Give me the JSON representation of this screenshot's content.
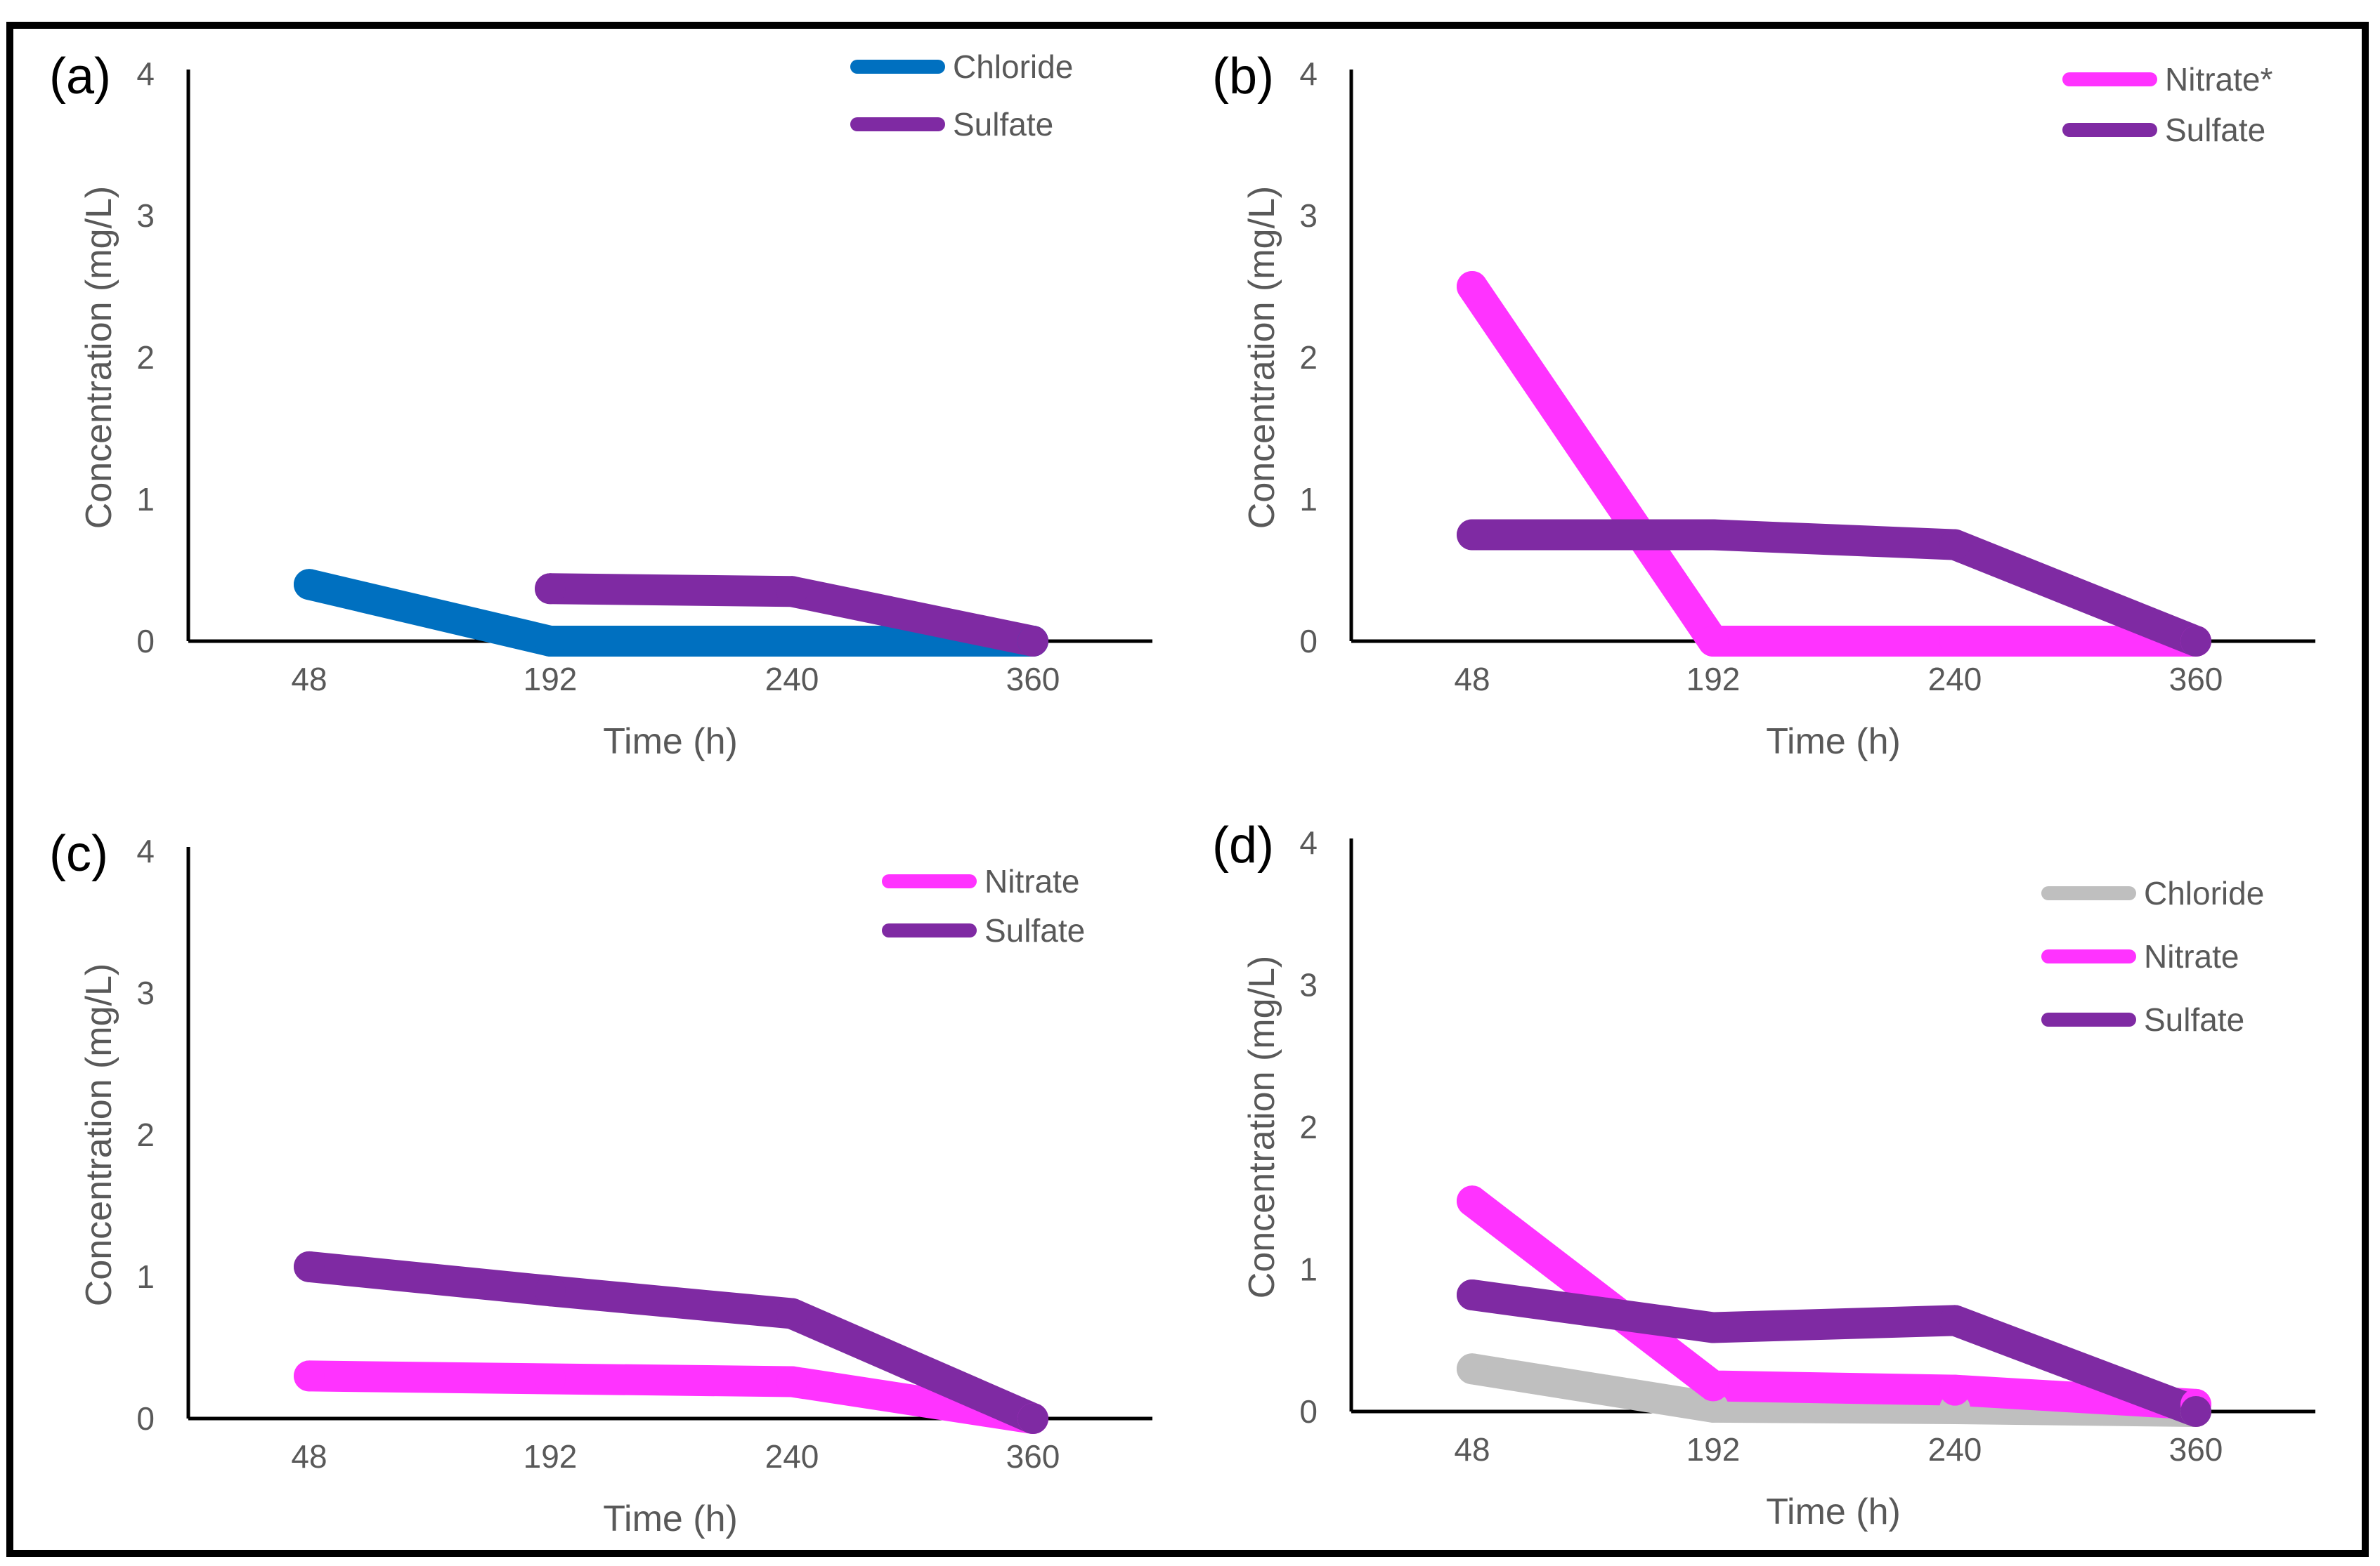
{
  "chart_data": [
    {
      "type": "line",
      "panel_label": "(a)",
      "title": "",
      "xlabel": "Time (h)",
      "ylabel": "Concentration (mg/L)",
      "categories": [
        "48",
        "192",
        "240",
        "360"
      ],
      "yticks": [
        "0",
        "1",
        "2",
        "3",
        "4"
      ],
      "ylim": [
        0,
        4
      ],
      "legend_position": "top-right",
      "series": [
        {
          "name": "Chloride",
          "color": "#0070C0",
          "values": [
            0.4,
            0,
            0,
            0
          ]
        },
        {
          "name": "Sulfate",
          "color": "#7F2AA3",
          "values": [
            null,
            0.37,
            0.35,
            0
          ]
        }
      ]
    },
    {
      "type": "line",
      "panel_label": "(b)",
      "title": "",
      "xlabel": "Time (h)",
      "ylabel": "Concentration (mg/L)",
      "categories": [
        "48",
        "192",
        "240",
        "360"
      ],
      "yticks": [
        "0",
        "1",
        "2",
        "3",
        "4"
      ],
      "ylim": [
        0,
        4
      ],
      "legend_position": "top-right",
      "series": [
        {
          "name": "Nitrate*",
          "color": "#FF33FF",
          "values": [
            2.5,
            0,
            0,
            0
          ]
        },
        {
          "name": "Sulfate",
          "color": "#7F2AA3",
          "values": [
            0.75,
            0.75,
            0.68,
            0
          ]
        }
      ]
    },
    {
      "type": "line",
      "panel_label": "(c)",
      "title": "",
      "xlabel": "Time (h)",
      "ylabel": "Concentration (mg/L)",
      "categories": [
        "48",
        "192",
        "240",
        "360"
      ],
      "yticks": [
        "0",
        "1",
        "2",
        "3",
        "4"
      ],
      "ylim": [
        0,
        4
      ],
      "legend_position": "top-right",
      "series": [
        {
          "name": "Nitrate",
          "color": "#FF33FF",
          "values": [
            0.3,
            0.28,
            0.26,
            0
          ]
        },
        {
          "name": "Sulfate",
          "color": "#7F2AA3",
          "values": [
            1.07,
            0.9,
            0.74,
            0
          ]
        }
      ]
    },
    {
      "type": "line",
      "panel_label": "(d)",
      "title": "",
      "xlabel": "Time (h)",
      "ylabel": "Concentration (mg/L)",
      "categories": [
        "48",
        "192",
        "240",
        "360"
      ],
      "yticks": [
        "0",
        "1",
        "2",
        "3",
        "4"
      ],
      "ylim": [
        0,
        4
      ],
      "legend_position": "top-right",
      "series": [
        {
          "name": "Chloride",
          "color": "#BFBFBF",
          "values": [
            0.3,
            0.03,
            0.02,
            0
          ]
        },
        {
          "name": "Nitrate",
          "color": "#FF33FF",
          "values": [
            1.48,
            0.18,
            0.15,
            0.05
          ]
        },
        {
          "name": "Sulfate",
          "color": "#7F2AA3",
          "values": [
            0.82,
            0.59,
            0.64,
            0
          ]
        }
      ]
    }
  ]
}
